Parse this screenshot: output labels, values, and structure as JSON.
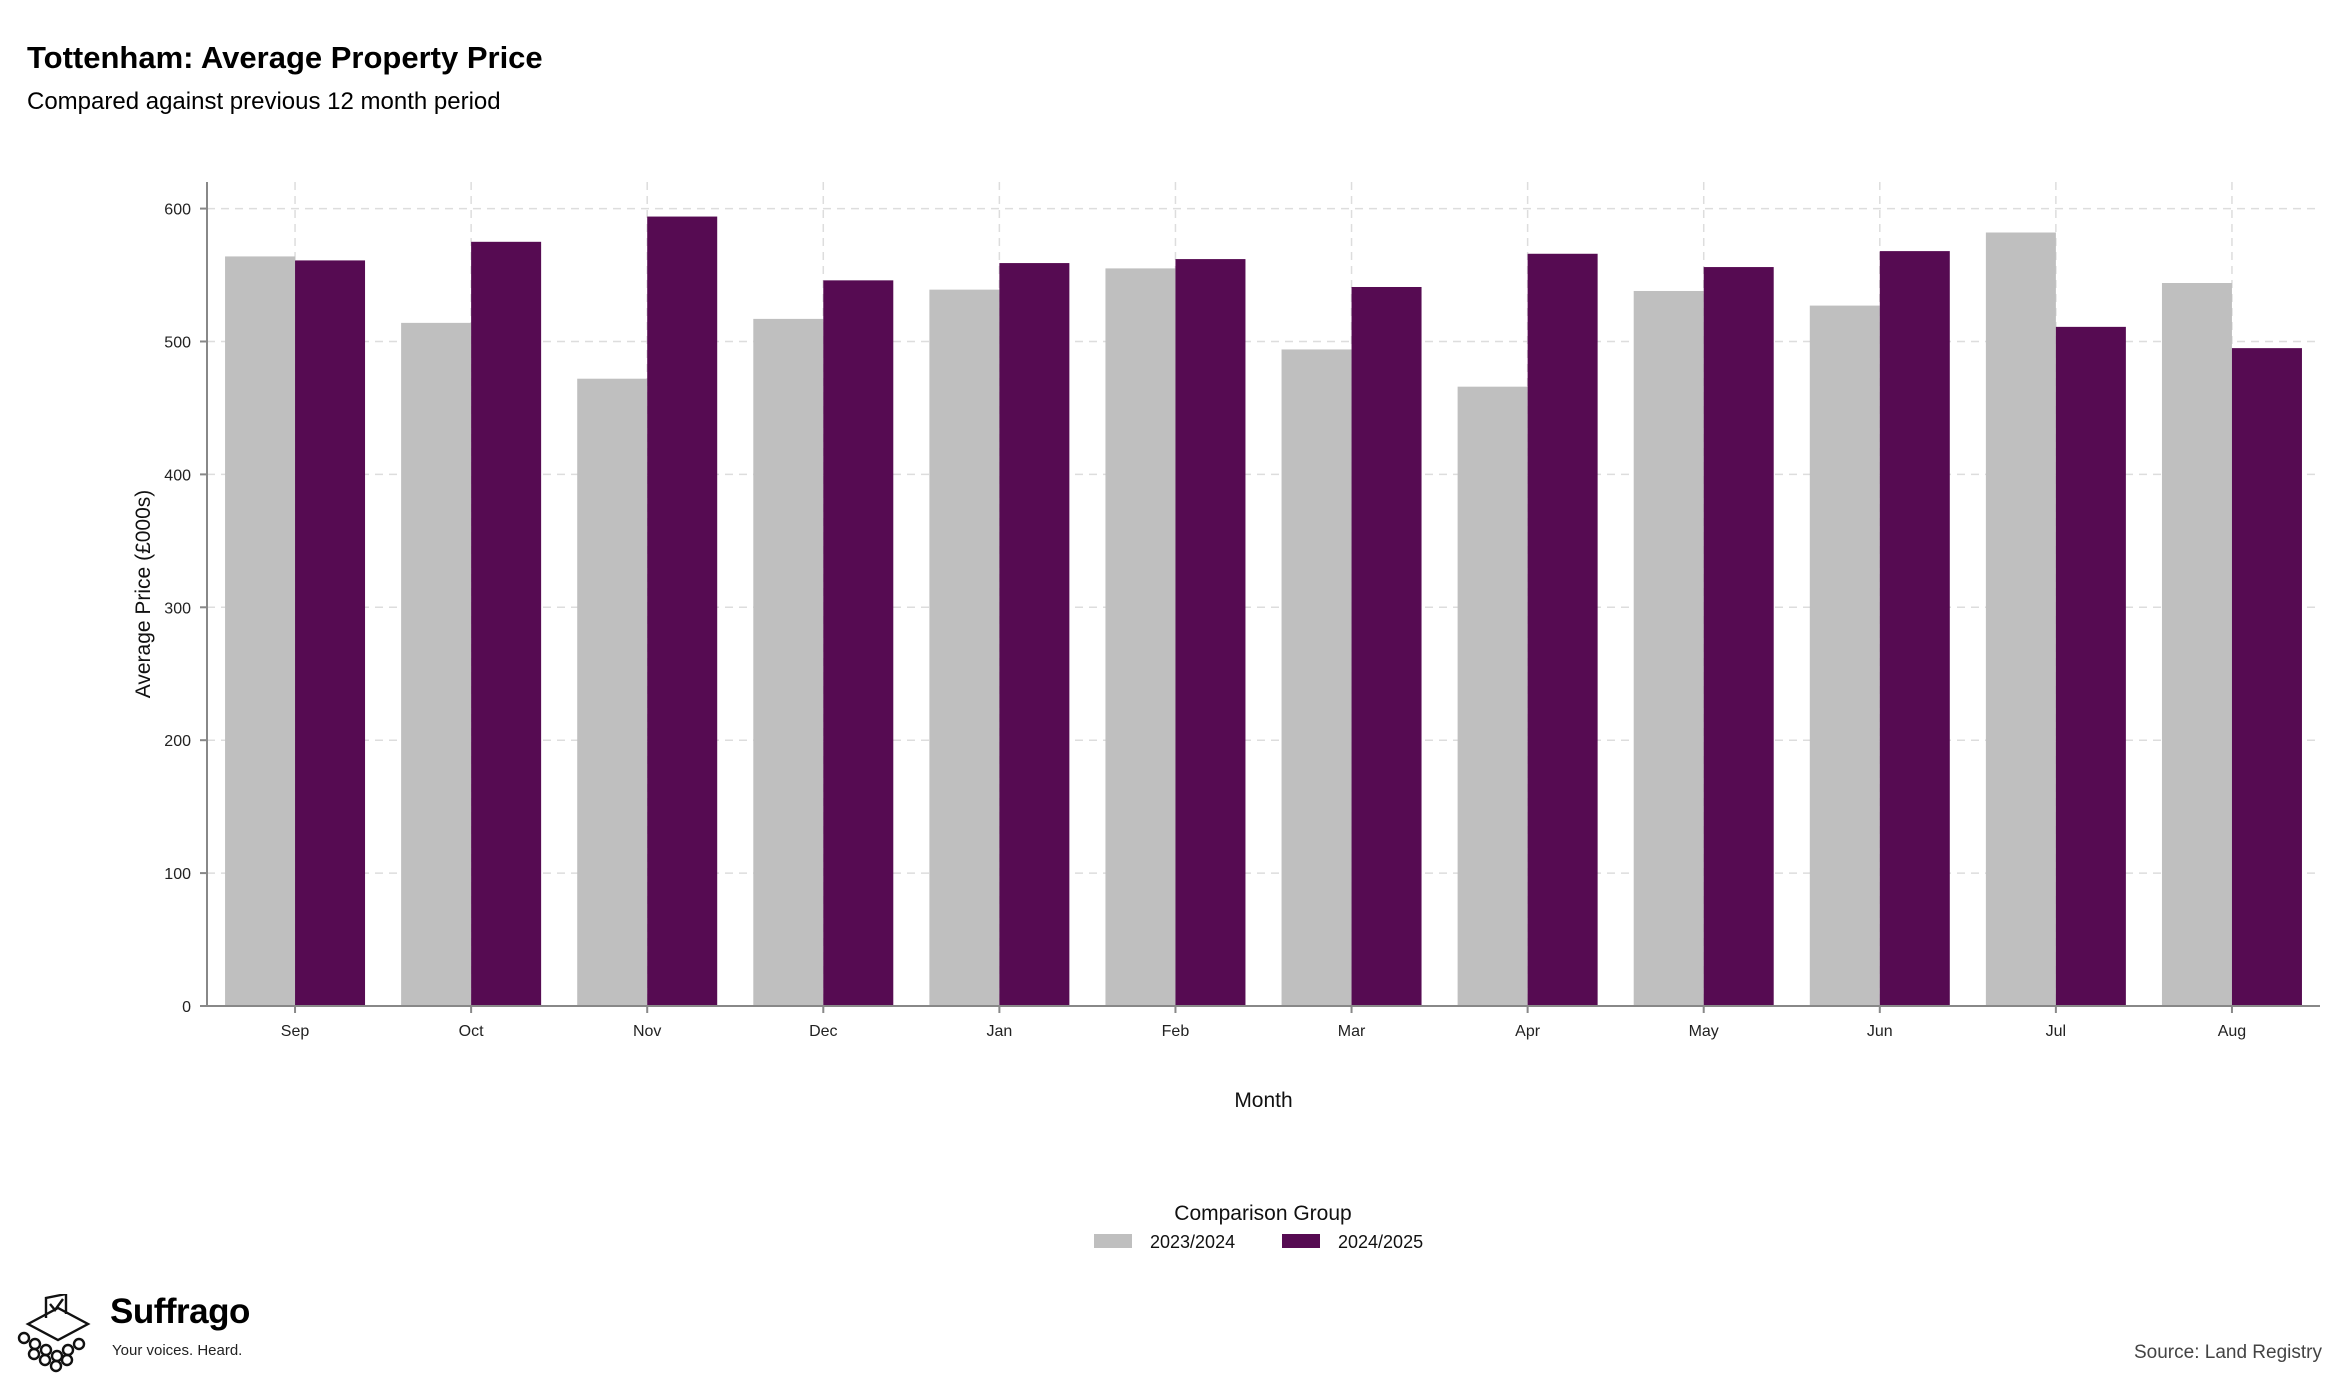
{
  "title": "Tottenham: Average Property Price",
  "subtitle": "Compared against previous 12 month period",
  "source": "Source: Land Registry",
  "brand": {
    "name": "Suffrago",
    "tagline": "Your voices. Heard."
  },
  "colors": {
    "series_a": "#bfbfbf",
    "series_b": "#560b52",
    "grid": "#dddddd",
    "axis": "#888888"
  },
  "chart_data": {
    "type": "bar",
    "xlabel": "Month",
    "ylabel": "Average Price (£000s)",
    "ylim": [
      0,
      620
    ],
    "yticks": [
      0,
      100,
      200,
      300,
      400,
      500,
      600
    ],
    "grid": true,
    "legend": {
      "title": "Comparison Group",
      "position": "bottom"
    },
    "categories": [
      "Sep",
      "Oct",
      "Nov",
      "Dec",
      "Jan",
      "Feb",
      "Mar",
      "Apr",
      "May",
      "Jun",
      "Jul",
      "Aug"
    ],
    "series": [
      {
        "name": "2023/2024",
        "values": [
          564,
          514,
          472,
          517,
          539,
          555,
          494,
          466,
          538,
          527,
          582,
          544
        ]
      },
      {
        "name": "2024/2025",
        "values": [
          561,
          575,
          594,
          546,
          559,
          562,
          541,
          566,
          556,
          568,
          511,
          495
        ]
      }
    ]
  }
}
